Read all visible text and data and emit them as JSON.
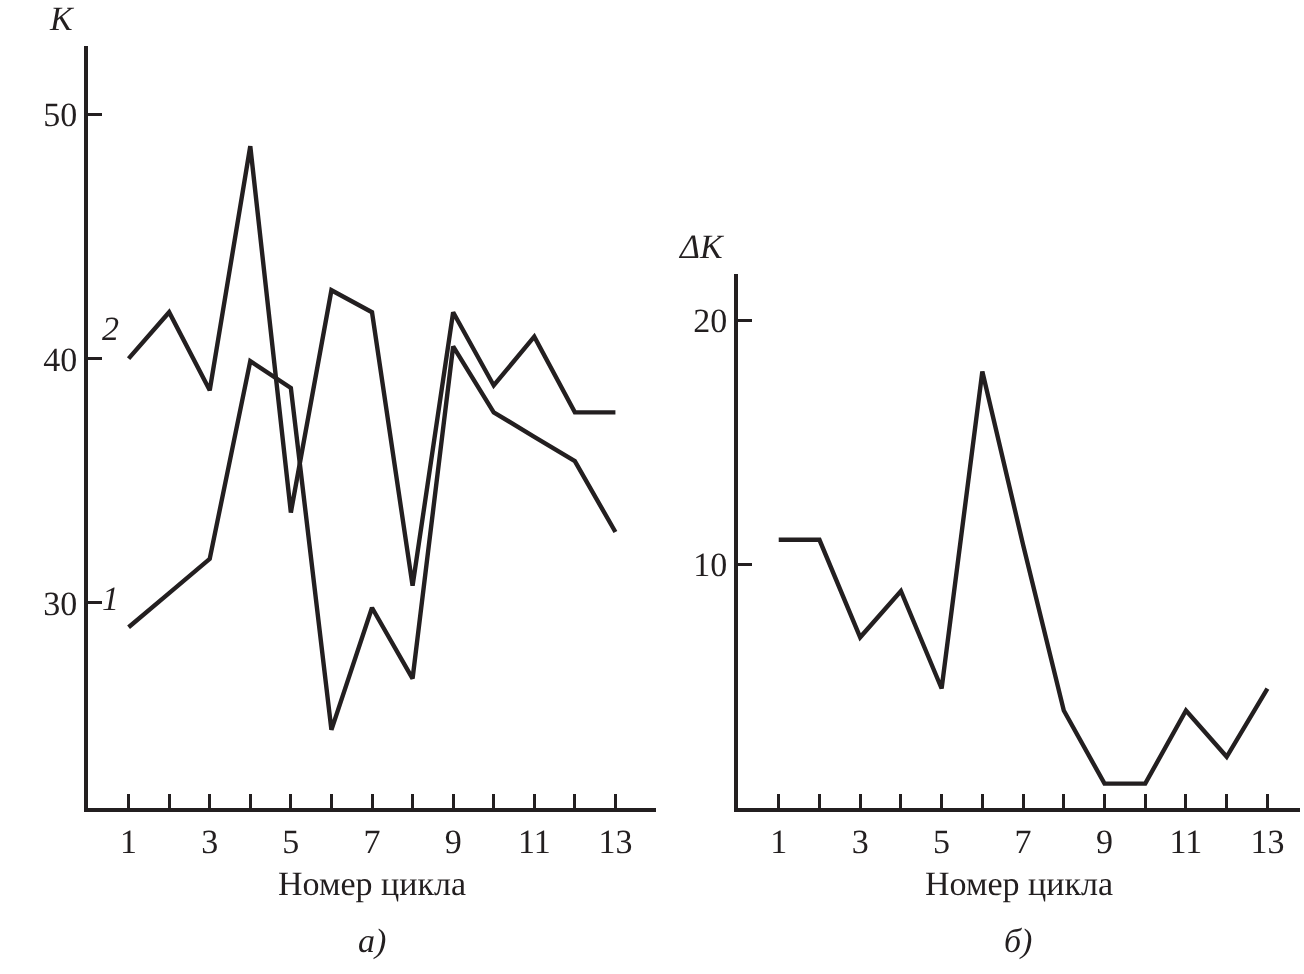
{
  "chart_data": [
    {
      "type": "line",
      "xlabel": "Номер цикла",
      "ylabel": "K",
      "x": [
        1,
        2,
        3,
        4,
        5,
        6,
        7,
        8,
        9,
        10,
        11,
        12,
        13
      ],
      "series": [
        {
          "name": "1",
          "color": "#231f20",
          "values": [
            29,
            30.4,
            31.8,
            39.9,
            38.8,
            24.8,
            29.8,
            26.9,
            40.5,
            37.8,
            36.8,
            35.8,
            32.9
          ]
        },
        {
          "name": "2",
          "color": "#231f20",
          "values": [
            40,
            41.9,
            38.7,
            48.7,
            33.7,
            42.8,
            41.9,
            30.7,
            41.9,
            38.9,
            40.9,
            37.8,
            37.8
          ]
        }
      ],
      "xlim": [
        0,
        14
      ],
      "ylim": [
        21.6,
        52.8
      ],
      "xticks": [
        1,
        {
          "value": 2,
          "label": null
        },
        3,
        {
          "value": 4,
          "label": null
        },
        5,
        {
          "value": 6,
          "label": null
        },
        7,
        {
          "value": 8,
          "label": null
        },
        9,
        {
          "value": 10,
          "label": null
        },
        11,
        {
          "value": 12,
          "label": null
        },
        13
      ],
      "yticks": [
        30,
        40,
        50
      ],
      "grid": false,
      "annotations": [
        "а)"
      ]
    },
    {
      "type": "line",
      "xlabel": "Номер цикла",
      "ylabel": "ΔK",
      "x": [
        1,
        2,
        3,
        4,
        5,
        6,
        7,
        8,
        9,
        10,
        11,
        12,
        13
      ],
      "series": [
        {
          "color": "#231f20",
          "values": [
            11,
            11,
            7,
            8.9,
            4.9,
            17.9,
            10.8,
            4,
            1,
            1,
            4,
            2.1,
            4.9
          ]
        }
      ],
      "xlim": [
        0,
        13.8
      ],
      "ylim": [
        0,
        21.9
      ],
      "xticks": [
        1,
        {
          "value": 2,
          "label": null
        },
        3,
        {
          "value": 4,
          "label": null
        },
        5,
        {
          "value": 6,
          "label": null
        },
        7,
        {
          "value": 8,
          "label": null
        },
        9,
        {
          "value": 10,
          "label": null
        },
        11,
        {
          "value": 12,
          "label": null
        },
        13
      ],
      "yticks": [
        10,
        20
      ],
      "grid": false,
      "annotations": [
        "б)"
      ]
    }
  ]
}
